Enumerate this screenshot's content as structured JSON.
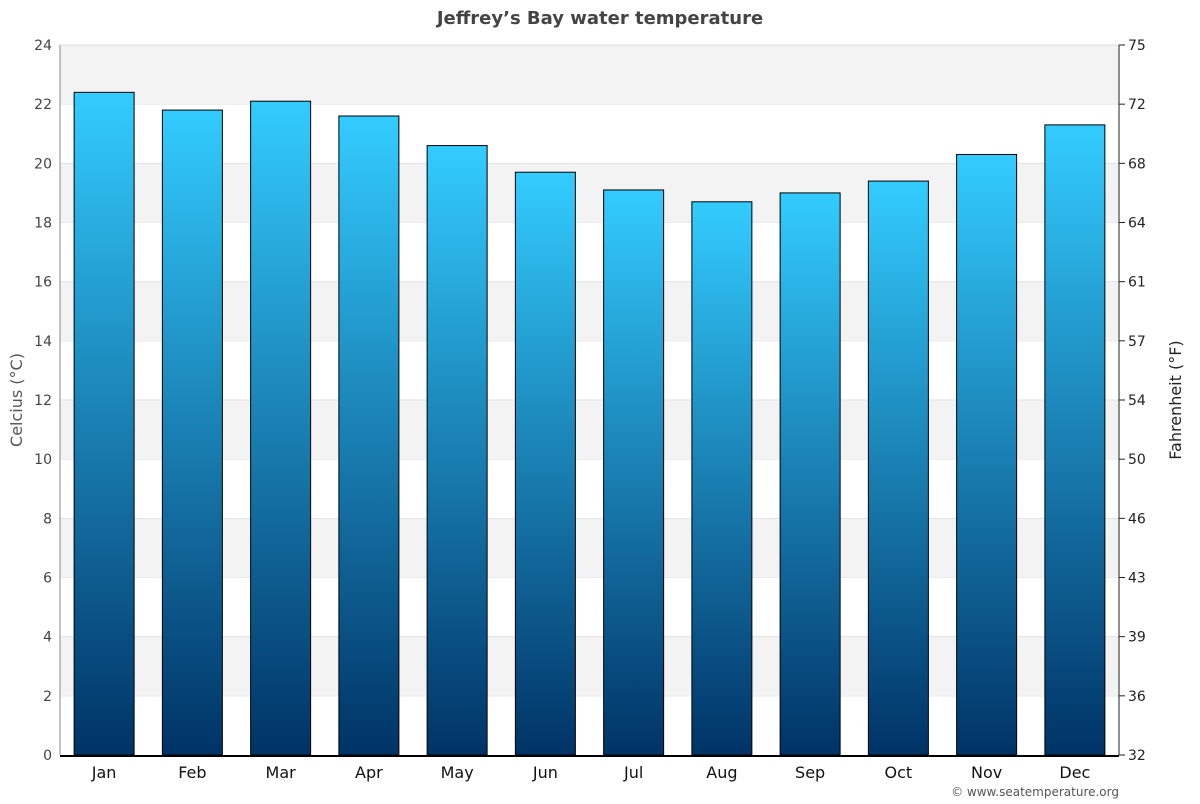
{
  "chart_data": {
    "type": "bar",
    "title": "Jeffrey’s Bay water temperature",
    "categories": [
      "Jan",
      "Feb",
      "Mar",
      "Apr",
      "May",
      "Jun",
      "Jul",
      "Aug",
      "Sep",
      "Oct",
      "Nov",
      "Dec"
    ],
    "values": [
      22.4,
      21.8,
      22.1,
      21.6,
      20.6,
      19.7,
      19.1,
      18.7,
      19.0,
      19.4,
      20.3,
      21.3
    ],
    "ylabel": "Celcius (°C)",
    "y2label": "Fahrenheit (°F)",
    "ylim": [
      0,
      24
    ],
    "yticks": [
      0,
      2,
      4,
      6,
      8,
      10,
      12,
      14,
      16,
      18,
      20,
      22,
      24
    ],
    "y2ticks": [
      32,
      36,
      39,
      43,
      46,
      50,
      54,
      57,
      61,
      64,
      68,
      72,
      75
    ],
    "grid": true,
    "colors": {
      "bar_top": "#33ccff",
      "bar_bottom": "#003366",
      "band": "#f3f3f3"
    }
  },
  "footer": {
    "credit": "© www.seatemperature.org"
  }
}
